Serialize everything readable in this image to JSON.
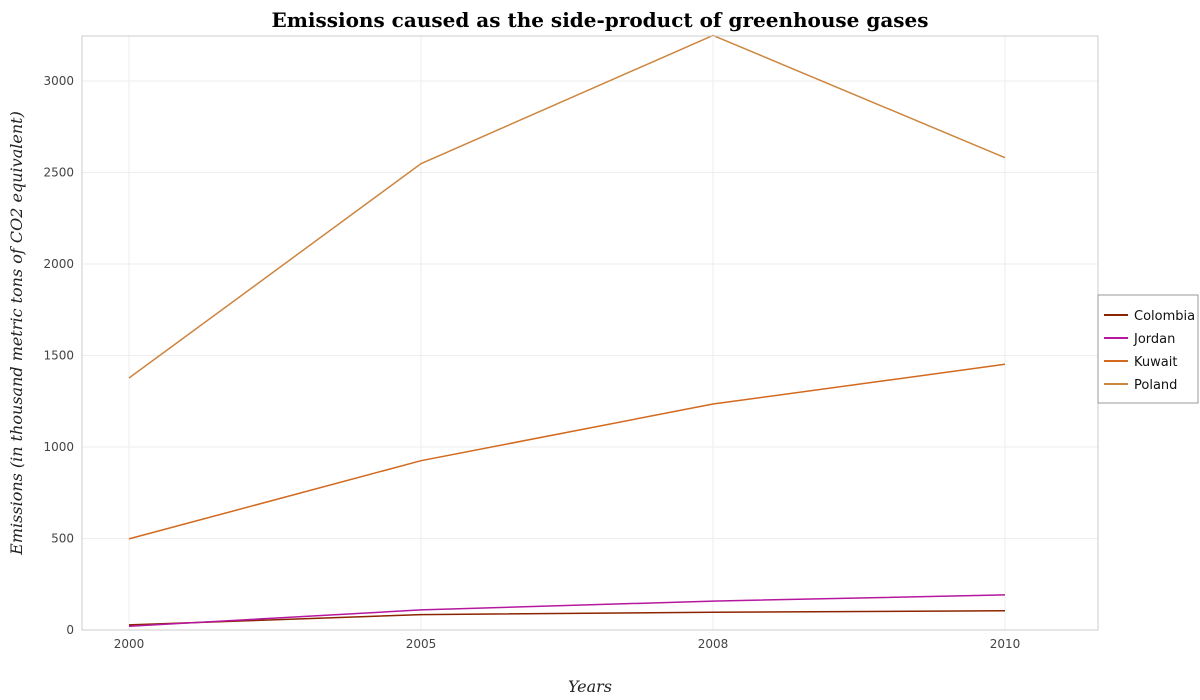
{
  "chart_data": {
    "type": "line",
    "title": "Emissions caused as the side-product of greenhouse gases",
    "xlabel": "Years",
    "ylabel": "Emissions (in thousand metric tons of CO2 equivalent)",
    "categories": [
      "2000",
      "2005",
      "2008",
      "2010"
    ],
    "ylim": [
      0,
      3400
    ],
    "yticks": [
      0,
      500,
      1000,
      1500,
      2000,
      2500,
      3000
    ],
    "grid": true,
    "legend_position": "right",
    "series": [
      {
        "name": "Colombia",
        "color": "#8B2500",
        "values": [
          28,
          84,
          97,
          105
        ]
      },
      {
        "name": "Jordan",
        "color": "#B5179E",
        "values": [
          20,
          110,
          158,
          192
        ]
      },
      {
        "name": "Kuwait",
        "color": "#D2691E",
        "values": [
          498,
          925,
          1235,
          1452
        ]
      },
      {
        "name": "Poland",
        "color": "#CD853F",
        "values": [
          1377,
          2548,
          3249,
          2581
        ]
      }
    ]
  }
}
